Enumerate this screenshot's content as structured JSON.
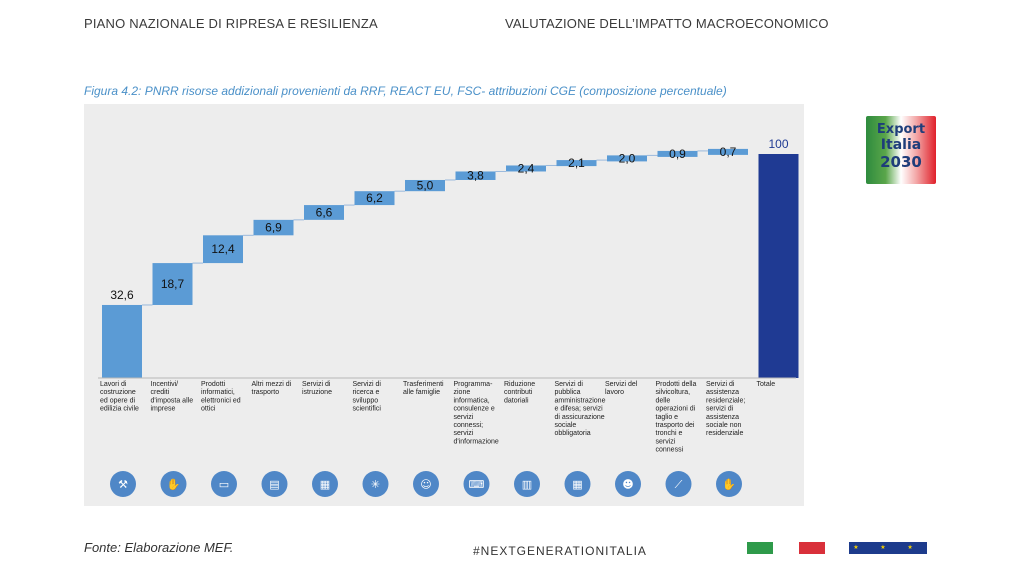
{
  "header": {
    "left": "PIANO NAZIONALE DI RIPRESA E RESILIENZA",
    "right": "VALUTAZIONE DELL’IMPATTO MACROECONOMICO"
  },
  "logo": {
    "line1": "Export",
    "line2": "Italia",
    "line3": "2030"
  },
  "footer": {
    "source": "Fonte: Elaborazione MEF.",
    "hashtag": "#NEXTGENERATIONITALIA"
  },
  "colors": {
    "bar": "#5b9bd5",
    "total": "#1f3a93",
    "panel": "#ededed",
    "icon": "#4f87c7"
  },
  "chart_data": {
    "type": "bar",
    "title": "Figura 4.2: PNRR risorse addizionali provenienti da RRF, REACT EU, FSC- attribuzioni CGE (composizione percentuale)",
    "ylim": [
      0,
      100
    ],
    "grid": false,
    "legend": "none",
    "categories": [
      "Lavori di costruzione ed opere di edilizia civile",
      "Incentivi/ crediti d'imposta alle imprese",
      "Prodotti informatici, elettronici ed ottici",
      "Altri mezzi di trasporto",
      "Servizi di istruzione",
      "Servizi di ricerca e sviluppo scientifici",
      "Trasferimenti alle famiglie",
      "Programmazione informatica, consulenze e servizi connessi; servizi d'informazione",
      "Riduzione contributi datoriali",
      "Servizi di pubblica amministrazione e difesa; servizi di assicurazione sociale obbligatoria",
      "Servizi del lavoro",
      "Prodotti della silvicoltura, delle operazioni di taglio e trasporto dei tronchi e servizi connessi",
      "Servizi di assistenza residenziale; servizi di assistenza sociale non residenziale",
      "Totale"
    ],
    "category_lines": [
      [
        "Lavori di",
        "costruzione",
        "ed opere di",
        "edilizia civile"
      ],
      [
        "Incentivi/",
        "crediti",
        "d'imposta alle",
        "imprese"
      ],
      [
        "Prodotti",
        "informatici,",
        "elettronici ed",
        "ottici"
      ],
      [
        "Altri mezzi di",
        "trasporto"
      ],
      [
        "Servizi di",
        "istruzione"
      ],
      [
        "Servizi di",
        "ricerca e",
        "sviluppo",
        "scientifici"
      ],
      [
        "Trasferimenti",
        "alle famiglie"
      ],
      [
        "Programma-",
        "zione",
        "informatica,",
        "consulenze e",
        "servizi",
        "connessi;",
        "servizi",
        "d'informazione"
      ],
      [
        "Riduzione",
        "contributi",
        "datoriali"
      ],
      [
        "Servizi di",
        "pubblica",
        "amministrazione",
        "e difesa; servizi",
        "di assicurazione",
        "sociale",
        "obbligatoria"
      ],
      [
        "Servizi del",
        "lavoro"
      ],
      [
        "Prodotti della",
        "silvicoltura,",
        "delle",
        "operazioni di",
        "taglio e",
        "trasporto dei",
        "tronchi e",
        "servizi",
        "connessi"
      ],
      [
        "Servizi di",
        "assistenza",
        "residenziale;",
        "servizi di",
        "assistenza",
        "sociale non",
        "residenziale"
      ],
      [
        "Totale"
      ]
    ],
    "values": [
      32.6,
      18.7,
      12.4,
      6.9,
      6.6,
      6.2,
      5.0,
      3.8,
      2.4,
      2.1,
      2.0,
      0.9,
      0.7,
      100
    ],
    "value_labels": [
      "32,6",
      "18,7",
      "12,4",
      "6,9",
      "6,6",
      "6,2",
      "5,0",
      "3,8",
      "2,4",
      "2,1",
      "2,0",
      "0,9",
      "0,7",
      "100"
    ],
    "icons": [
      "construction-crane-icon",
      "hand-coin-icon",
      "computer-monitor-icon",
      "train-icon",
      "book-icon",
      "research-icon",
      "family-icon",
      "programmer-icon",
      "bar-chart-icon",
      "government-building-icon",
      "worker-icon",
      "forestry-truck-icon",
      "social-care-icon"
    ]
  }
}
